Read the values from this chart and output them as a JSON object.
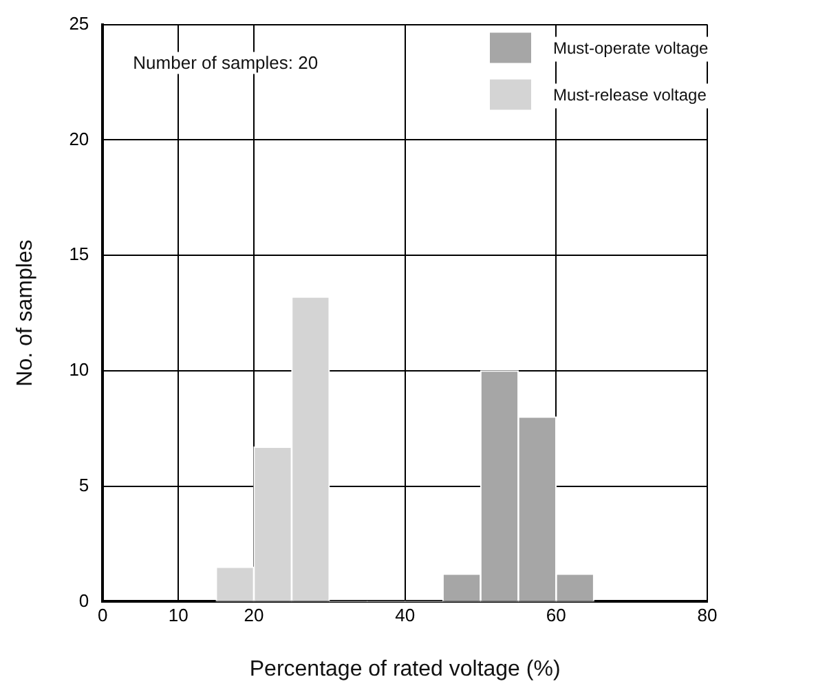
{
  "chart_data": {
    "type": "histogram",
    "xlabel": "Percentage of rated voltage (%)",
    "ylabel": "No. of samples",
    "annotations": [
      "Number of samples: 20"
    ],
    "bins": [
      15,
      20,
      25,
      30,
      35,
      40,
      45,
      50,
      55,
      60,
      65
    ],
    "series": [
      {
        "name": "Must-operate voltage",
        "color": "#a6a6a6",
        "values": [
          0,
          0,
          0,
          0,
          0,
          0,
          1.2,
          10,
          8,
          1.2
        ]
      },
      {
        "name": "Must-release voltage",
        "color": "#d4d4d4",
        "values": [
          1.5,
          6.7,
          13.2,
          0,
          0,
          0,
          0,
          0,
          0,
          0
        ]
      }
    ],
    "xlim": [
      0,
      80
    ],
    "xticks": [
      0,
      10,
      20,
      40,
      60,
      80
    ],
    "ylim": [
      0,
      25
    ],
    "yticks": [
      0,
      5,
      10,
      15,
      20,
      25
    ],
    "grid": true,
    "legend": "top right"
  }
}
